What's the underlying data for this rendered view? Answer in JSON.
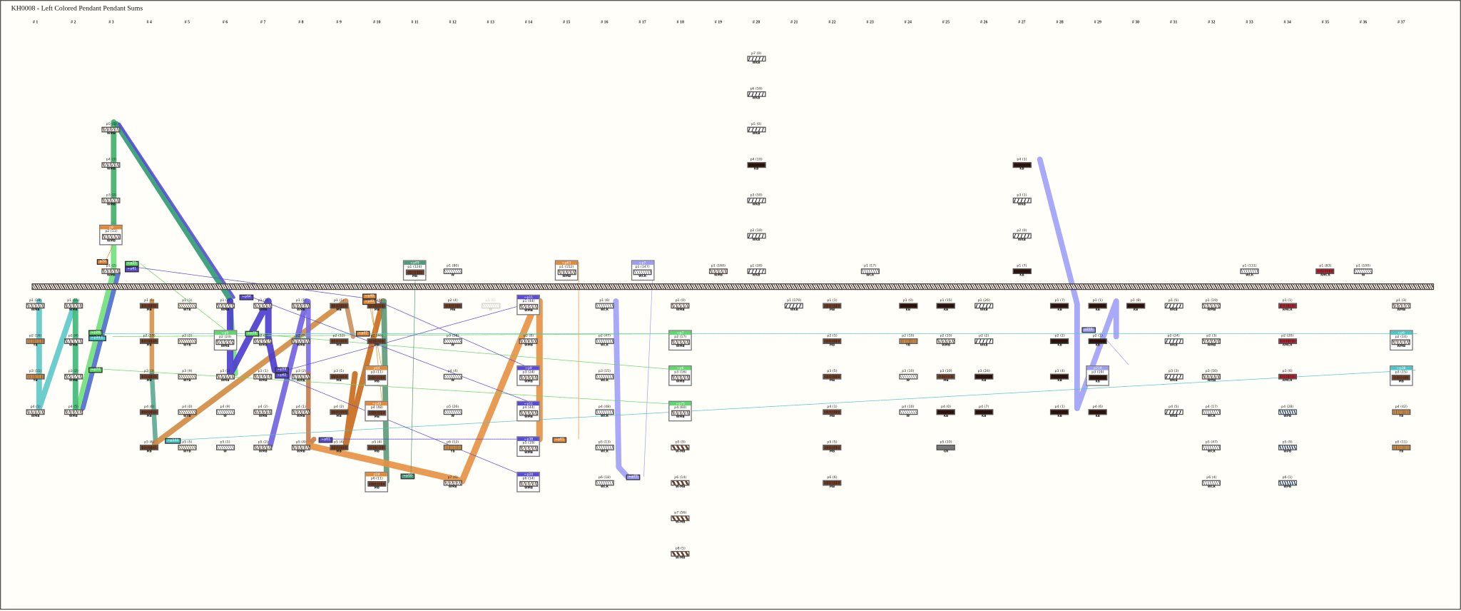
{
  "title": "KH0008 - Left Colored Pendant Pendant Sums",
  "colors": {
    "MB": "#6b3a22",
    "KB": "#2b130c",
    "YB": "#c98a48",
    "RMCR": "#a3202c",
    "WPB": "#1e3f7a",
    "green": "#5ed86a",
    "teal": "#4cc6c6",
    "purple": "#5a4ad8",
    "lavender": "#9d9df5",
    "orange": "#e08a3a",
    "seagreen": "#4f9a78"
  },
  "columns": [
    {
      "label": "# 1",
      "above": [],
      "below": [
        {
          "label": "p1 (18)",
          "code": "WMB"
        },
        {
          "label": "p2 (16)",
          "code": "YB"
        },
        {
          "label": "p3 (11)",
          "code": "YB"
        },
        {
          "label": "p4 (1)",
          "code": "WMB"
        }
      ]
    },
    {
      "label": "# 2",
      "above": [],
      "below": [
        {
          "label": "p1 (11)",
          "code": "WMB"
        },
        {
          "label": "p2 (4)",
          "code": "WMB"
        },
        {
          "label": "p3 (2)",
          "code": "WMB"
        },
        {
          "label": "p4 (5)",
          "code": "WMB"
        }
      ]
    },
    {
      "label": "# 3",
      "above": [
        {
          "label": "p1 (2)",
          "code": "WMB"
        },
        {
          "label": "p2 (11)",
          "code": "WMB",
          "tag": "p9",
          "tagColor": "orange"
        },
        {
          "label": "p3 (2)",
          "code": "WMB"
        },
        {
          "label": "p4 (3)",
          "code": "WMB"
        },
        {
          "label": "p5 (5)",
          "code": "WMB"
        }
      ],
      "below": []
    },
    {
      "label": "# 4",
      "above": [],
      "below": [
        {
          "label": "p1 (1)",
          "code": "MB"
        },
        {
          "label": "p2 (19)",
          "code": "MB"
        },
        {
          "label": "p3 (3)",
          "code": "MB"
        },
        {
          "label": "p4 (6)",
          "code": "MB"
        },
        {
          "label": "p5 (6)",
          "code": "MB"
        }
      ]
    },
    {
      "label": "# 5",
      "above": [],
      "below": [
        {
          "label": "p1 (1)",
          "code": "WYB"
        },
        {
          "label": "p2 (2)",
          "code": "WYB"
        },
        {
          "label": "p3 (9)",
          "code": "WYB"
        },
        {
          "label": "p4 (0)",
          "code": "WYB"
        },
        {
          "label": "p5 (5)",
          "code": "WYB"
        }
      ]
    },
    {
      "label": "# 6",
      "above": [],
      "below": [
        {
          "label": "p1 (4)",
          "code": "WMB"
        },
        {
          "label": "p2 (24)",
          "code": "WMB",
          "tag": "←p9",
          "tagColor": "green"
        },
        {
          "label": "p3 (1)",
          "code": "WMB"
        },
        {
          "label": "p4 (9)",
          "code": "W"
        },
        {
          "label": "p5 (1)",
          "code": "W"
        }
      ]
    },
    {
      "label": "# 7",
      "above": [],
      "below": [
        {
          "label": "p1 (1)",
          "code": "WMB"
        },
        {
          "label": "p2 (8)",
          "code": "WMB"
        },
        {
          "label": "p3 (1)",
          "code": "WMB"
        },
        {
          "label": "p4 (2)",
          "code": "WMB"
        },
        {
          "label": "p5 (2)",
          "code": "WMB"
        }
      ]
    },
    {
      "label": "# 8",
      "above": [],
      "below": [
        {
          "label": "p1 (1)",
          "code": "WMB"
        },
        {
          "label": "p2 (9)",
          "code": "WMB"
        },
        {
          "label": "p3 (2)",
          "code": "WMB"
        },
        {
          "label": "p4 (1)",
          "code": "WMB"
        },
        {
          "label": "p5 (4)",
          "code": "WMB"
        }
      ]
    },
    {
      "label": "# 9",
      "above": [],
      "below": [
        {
          "label": "p1 (1)",
          "code": "MB"
        },
        {
          "label": "p2 (12)",
          "code": "MB"
        },
        {
          "label": "p3 (1)",
          "code": "MB"
        },
        {
          "label": "p4 (2)",
          "code": "MB"
        },
        {
          "label": "p5 (4)",
          "code": "MB"
        }
      ]
    },
    {
      "label": "# 10",
      "above": [],
      "below": [
        {
          "label": "p1 (4)",
          "code": "MB"
        },
        {
          "label": "p2 (46)",
          "code": "MB"
        },
        {
          "label": "p3 (11)",
          "code": "MB",
          "tag": "p44",
          "tagColor": "orange"
        },
        {
          "label": "p4 (48)",
          "code": "MB",
          "tag": "←p40",
          "tagColor": "orange"
        },
        {
          "label": "p5 (4)",
          "code": "MB"
        },
        {
          "label": "p6 (11)",
          "code": "MB",
          "tag": "p14",
          "tagColor": "orange"
        }
      ]
    },
    {
      "label": "# 11",
      "above": [
        {
          "label": "p1 (124)",
          "code": "MB",
          "tag": "←p49",
          "tagColor": "seagreen"
        }
      ],
      "below": []
    },
    {
      "label": "# 12",
      "above": [
        {
          "label": "p1 (80)",
          "code": "W"
        }
      ],
      "below": [
        {
          "label": "p2 (4)",
          "code": "MB"
        },
        {
          "label": "p3 (28)",
          "code": "W"
        },
        {
          "label": "p4 (4)",
          "code": "W"
        },
        {
          "label": "p5 (26)",
          "code": "W"
        },
        {
          "label": "p6 (12)",
          "code": "YB"
        },
        {
          "label": "p7 (6)",
          "code": "WMB"
        }
      ]
    },
    {
      "label": "# 13",
      "above": [],
      "below": [
        {
          "label": "p1 (0)",
          "code": "W",
          "faded": true
        }
      ]
    },
    {
      "label": "# 14",
      "above": [],
      "below": [
        {
          "label": "p1 (44)",
          "code": "WMB",
          "tag": "←p11",
          "tagColor": "purple"
        },
        {
          "label": "p2 (8)",
          "code": "WMB"
        },
        {
          "label": "p3 (24)",
          "code": "WMB",
          "tag": "←p9",
          "tagColor": "purple"
        },
        {
          "label": "p4 (44)",
          "code": "WMB",
          "tag": "←p11",
          "tagColor": "purple"
        },
        {
          "label": "p5 (19)",
          "code": "WMB",
          "tag": "←p38",
          "tagColor": "purple"
        },
        {
          "label": "p6 (14)",
          "code": "WMB",
          "tag": "←p24",
          "tagColor": "purple"
        }
      ]
    },
    {
      "label": "# 15",
      "above": [
        {
          "label": "p1 (152)",
          "code": "WMB",
          "tag": "←p63",
          "tagColor": "orange"
        }
      ],
      "below": []
    },
    {
      "label": "# 16",
      "above": [],
      "below": [
        {
          "label": "p1 (6)",
          "code": "WCR"
        },
        {
          "label": "p2 (47)",
          "code": "WCR"
        },
        {
          "label": "p3 (15)",
          "code": "WCR"
        },
        {
          "label": "p4 (48)",
          "code": "WCR"
        },
        {
          "label": "p5 (13)",
          "code": "WCR"
        },
        {
          "label": "p6 (18)",
          "code": "WCR"
        }
      ]
    },
    {
      "label": "# 17",
      "above": [
        {
          "label": "p1 (147)",
          "code": "WCR",
          "tag": "←p7",
          "tagColor": "lavender"
        }
      ],
      "below": []
    },
    {
      "label": "# 18",
      "above": [],
      "below": [
        {
          "label": "p1 (0)",
          "code": "WMB"
        },
        {
          "label": "p2 (17)",
          "code": "WMB",
          "tag": "←p7",
          "tagColor": "green"
        },
        {
          "label": "p3 (16)",
          "code": "WMB",
          "tag": "←p6",
          "tagColor": "green"
        },
        {
          "label": "p4 (60)",
          "code": "WMB",
          "tag": "←p75",
          "tagColor": "green"
        },
        {
          "label": "p5 (0)",
          "code": "W-MB"
        },
        {
          "label": "p6 (14)",
          "code": "W-MB"
        },
        {
          "label": "p7 (56)",
          "code": "W-MB"
        },
        {
          "label": "p8 (5)",
          "code": "W-MB"
        }
      ]
    },
    {
      "label": "# 19",
      "above": [
        {
          "label": "p1 (160)",
          "code": "WMB"
        }
      ],
      "below": []
    },
    {
      "label": "# 20",
      "above": [
        {
          "label": "p1 (20)",
          "code": "WKB"
        },
        {
          "label": "p2 (10)",
          "code": "WKB"
        },
        {
          "label": "p3 (50)",
          "code": "WKB"
        },
        {
          "label": "p4 (10)",
          "code": "KB"
        },
        {
          "label": "p5 (0)",
          "code": "WKB"
        },
        {
          "label": "p6 (59)",
          "code": "WKB"
        },
        {
          "label": "p7 (0)",
          "code": "WKB"
        }
      ],
      "below": []
    },
    {
      "label": "# 21",
      "above": [],
      "below": [
        {
          "label": "p1 (170)",
          "code": "WKB"
        }
      ]
    },
    {
      "label": "# 22",
      "above": [],
      "below": [
        {
          "label": "p1 (1)",
          "code": "MB"
        },
        {
          "label": "p2 (1)",
          "code": "MB"
        },
        {
          "label": "p3 (5)",
          "code": "MB"
        },
        {
          "label": "p4 (1)",
          "code": "MB"
        },
        {
          "label": "p5 (5)",
          "code": "MB"
        },
        {
          "label": "p6 (6)",
          "code": "MB"
        }
      ]
    },
    {
      "label": "# 23",
      "above": [
        {
          "label": "p1 (17)",
          "code": "WCR"
        }
      ],
      "below": []
    },
    {
      "label": "# 24",
      "above": [],
      "below": [
        {
          "label": "p1 (0)",
          "code": "KB"
        },
        {
          "label": "p2 (10)",
          "code": "YB"
        },
        {
          "label": "p3 (10)",
          "code": "W"
        },
        {
          "label": "p4 (10)",
          "code": "W"
        }
      ]
    },
    {
      "label": "# 25",
      "above": [],
      "below": [
        {
          "label": "p1 (15)",
          "code": "KB"
        },
        {
          "label": "p2 (10)",
          "code": "WMB"
        },
        {
          "label": "p3 (10)",
          "code": "MB"
        },
        {
          "label": "p4 (0)",
          "code": "KB"
        },
        {
          "label": "p5 (10)",
          "code": "GR"
        }
      ]
    },
    {
      "label": "# 26",
      "above": [],
      "below": [
        {
          "label": "p1 (26)",
          "code": "WKB"
        },
        {
          "label": "p2 (2)",
          "code": "WKB"
        },
        {
          "label": "p3 (24)",
          "code": "KB"
        },
        {
          "label": "p4 (7)",
          "code": "KB"
        }
      ]
    },
    {
      "label": "# 27",
      "above": [
        {
          "label": "p1 (7)",
          "code": "KB"
        },
        {
          "label": "p2 (0)",
          "code": "WKB"
        },
        {
          "label": "p3 (1)",
          "code": "WKB"
        },
        {
          "label": "p4 (1)",
          "code": "KB"
        }
      ],
      "below": []
    },
    {
      "label": "# 28",
      "above": [],
      "below": [
        {
          "label": "p1 (7)",
          "code": "KB"
        },
        {
          "label": "p2 (2)",
          "code": "KB"
        },
        {
          "label": "p3 (4)",
          "code": "KB"
        },
        {
          "label": "p4 (1)",
          "code": "KB"
        }
      ]
    },
    {
      "label": "# 29",
      "above": [],
      "below": [
        {
          "label": "p1 (1)",
          "code": "KB"
        },
        {
          "label": "p2 (1)",
          "code": "KB"
        },
        {
          "label": "p3 (19)",
          "code": "KB",
          "tag": "p219",
          "tagColor": "lavender"
        },
        {
          "label": "p4 (6)",
          "code": "KB"
        }
      ]
    },
    {
      "label": "# 30",
      "above": [],
      "below": [
        {
          "label": "p1 (8)",
          "code": "KB"
        }
      ]
    },
    {
      "label": "# 31",
      "above": [],
      "below": [
        {
          "label": "p1 (5)",
          "code": "WKB"
        },
        {
          "label": "p2 (24)",
          "code": "WKB"
        },
        {
          "label": "p3 (3)",
          "code": "WKB"
        },
        {
          "label": "p4 (5)",
          "code": "WKB"
        }
      ]
    },
    {
      "label": "# 32",
      "above": [],
      "below": [
        {
          "label": "p1 (10)",
          "code": "WMB"
        },
        {
          "label": "p2 (3)",
          "code": "WMB"
        },
        {
          "label": "p3 (50)",
          "code": "WMB"
        },
        {
          "label": "p4 (17)",
          "code": "WCR"
        },
        {
          "label": "p5 (47)",
          "code": "WCR"
        },
        {
          "label": "p6 (4)",
          "code": "WCR"
        }
      ]
    },
    {
      "label": "# 33",
      "above": [
        {
          "label": "p1 (131)",
          "code": "WCR"
        }
      ],
      "below": []
    },
    {
      "label": "# 34",
      "above": [],
      "below": [
        {
          "label": "p1 (1)",
          "code": "RMCR"
        },
        {
          "label": "p2 (20)",
          "code": "RMCR"
        },
        {
          "label": "p3 (6)",
          "code": "RMCR"
        },
        {
          "label": "p4 (28)",
          "code": "WPB"
        },
        {
          "label": "p5 (9)",
          "code": "WPB"
        },
        {
          "label": "p6 (1)",
          "code": "WPB"
        }
      ]
    },
    {
      "label": "# 35",
      "above": [
        {
          "label": "p1 (83)",
          "code": "RMCR"
        }
      ],
      "below": []
    },
    {
      "label": "# 36",
      "above": [
        {
          "label": "p1 (100)",
          "code": "W"
        }
      ],
      "below": []
    },
    {
      "label": "# 37",
      "above": [],
      "below": [
        {
          "label": "p1 (3)",
          "code": "WMB"
        },
        {
          "label": "p2 (14)",
          "code": "WMB",
          "tag": "←p6",
          "tagColor": "teal"
        },
        {
          "label": "p3 (15)",
          "code": "MB",
          "tag": "←p38",
          "tagColor": "teal"
        },
        {
          "label": "p4 (42)",
          "code": "YB"
        },
        {
          "label": "p5 (11)",
          "code": "YB"
        }
      ]
    }
  ],
  "link_tags": [
    {
      "text": "p70",
      "color": "orange"
    },
    {
      "text": "←p25",
      "color": "green"
    },
    {
      "text": "←p61",
      "color": "purple"
    },
    {
      "text": "←p64",
      "color": "purple"
    },
    {
      "text": "←p26",
      "color": "green"
    },
    {
      "text": "←p34.1",
      "color": "teal"
    },
    {
      "text": "←p74",
      "color": "green"
    },
    {
      "text": "←p76",
      "color": "green"
    },
    {
      "text": "←p59",
      "color": "purple"
    },
    {
      "text": "←p62",
      "color": "purple"
    },
    {
      "text": "←p46",
      "color": "orange"
    },
    {
      "text": "←p49",
      "color": "orange"
    },
    {
      "text": "←p47",
      "color": "orange"
    },
    {
      "text": "←p144",
      "color": "teal"
    },
    {
      "text": "←p61",
      "color": "purple"
    },
    {
      "text": "←p10",
      "color": "seagreen"
    },
    {
      "text": "←p61",
      "color": "orange"
    },
    {
      "text": "←p77",
      "color": "lavender"
    },
    {
      "text": "p220",
      "color": "lavender"
    }
  ]
}
